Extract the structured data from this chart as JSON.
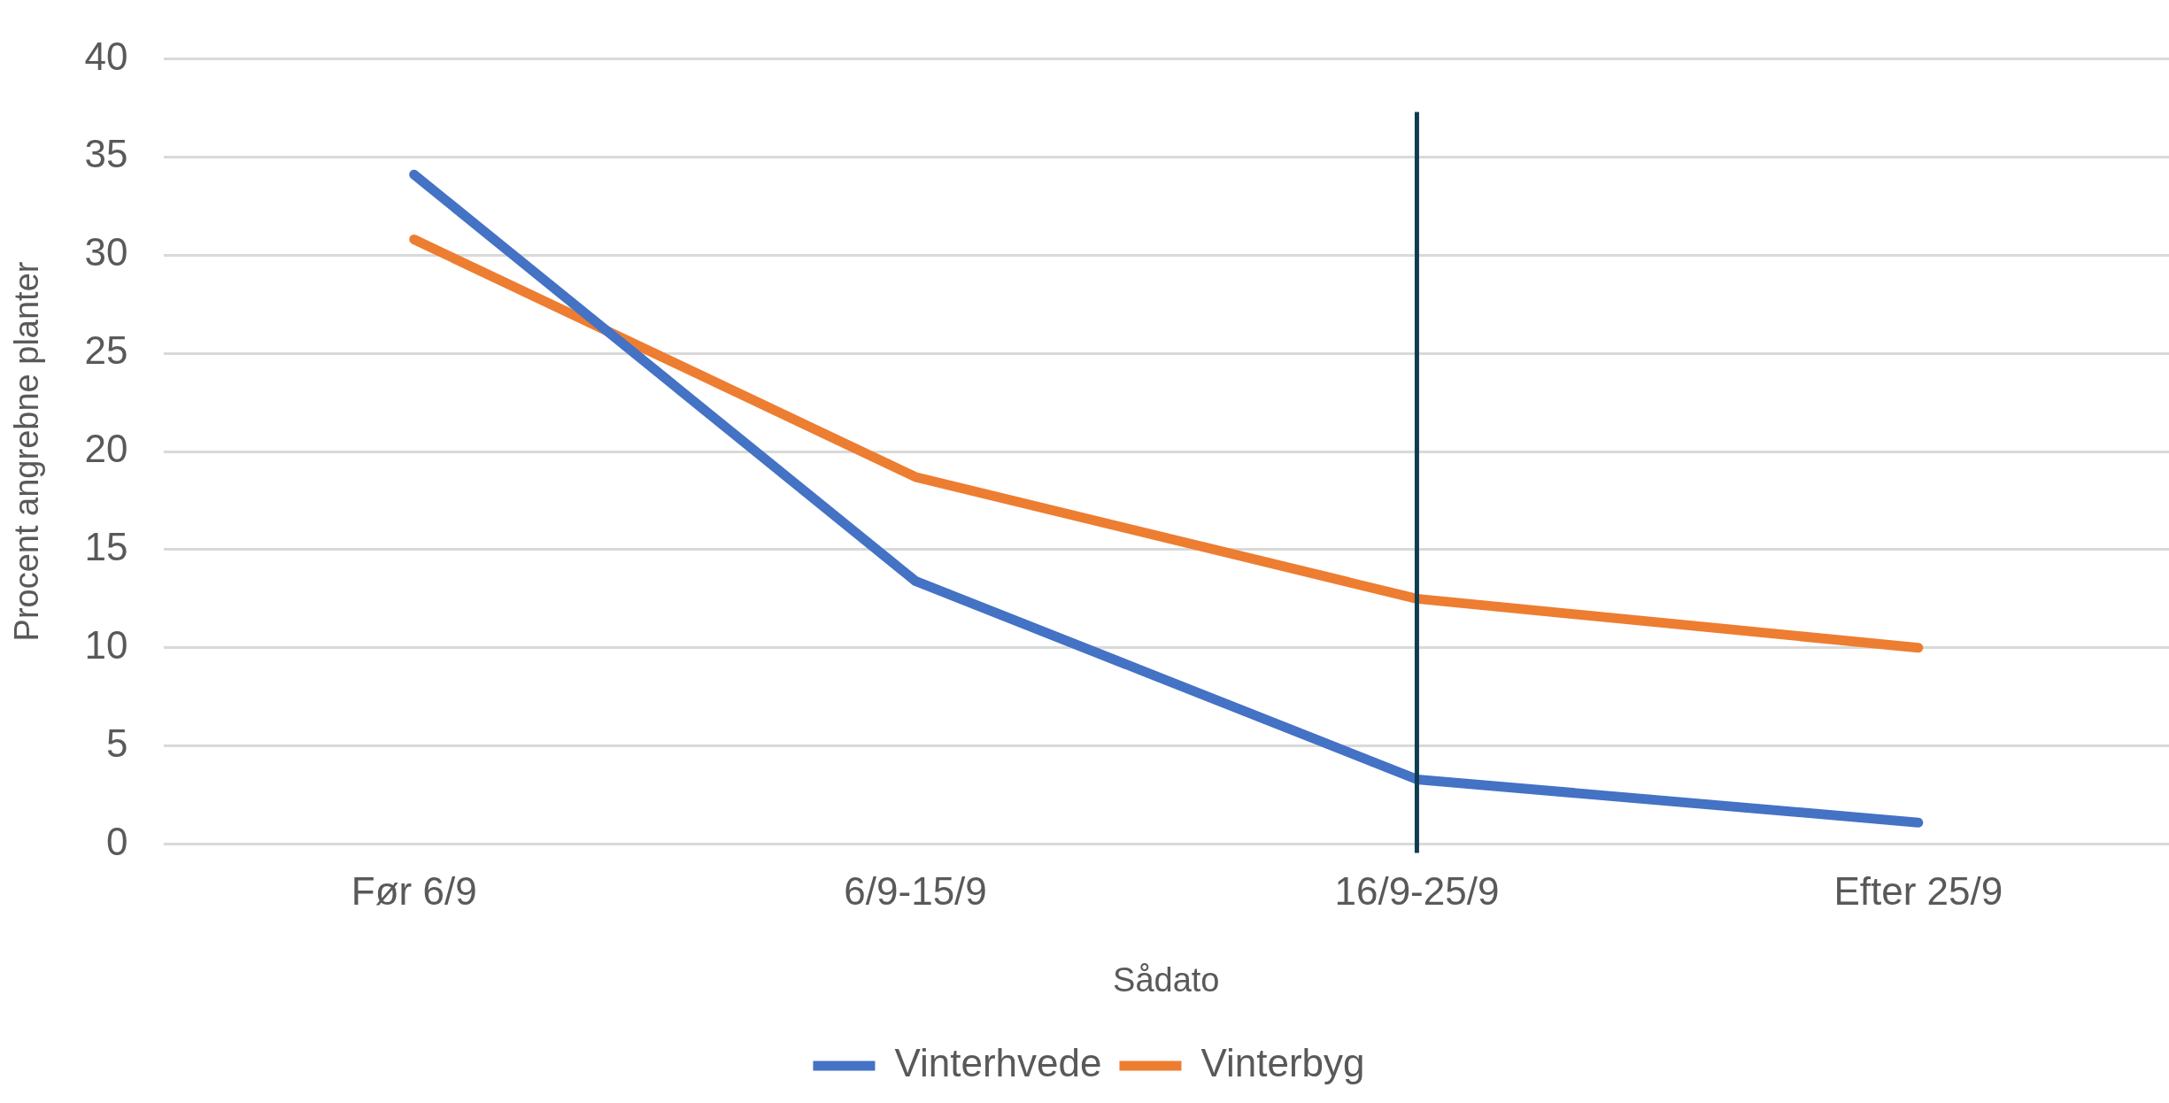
{
  "chart_data": {
    "type": "line",
    "xlabel": "Sådato",
    "ylabel": "Procent angrebne planter",
    "categories": [
      "Før 6/9",
      "6/9-15/9",
      "16/9-25/9",
      "Efter 25/9"
    ],
    "series": [
      {
        "name": "Vinterhvede",
        "color": "#4472c4",
        "values": [
          34.1,
          13.4,
          3.3,
          1.1
        ]
      },
      {
        "name": "Vinterbyg",
        "color": "#ed7d31",
        "values": [
          30.8,
          18.7,
          12.5,
          10.0
        ]
      }
    ],
    "ylim": [
      0,
      40
    ],
    "yticks": [
      0,
      5,
      10,
      15,
      20,
      25,
      30,
      35,
      40
    ],
    "grid": "y",
    "legend": "bottom",
    "marker": "none",
    "line_style": "solid",
    "ref_lines": [
      {
        "axis": "x",
        "value": "16/9-25/9",
        "color": "#0e3d52"
      }
    ]
  }
}
